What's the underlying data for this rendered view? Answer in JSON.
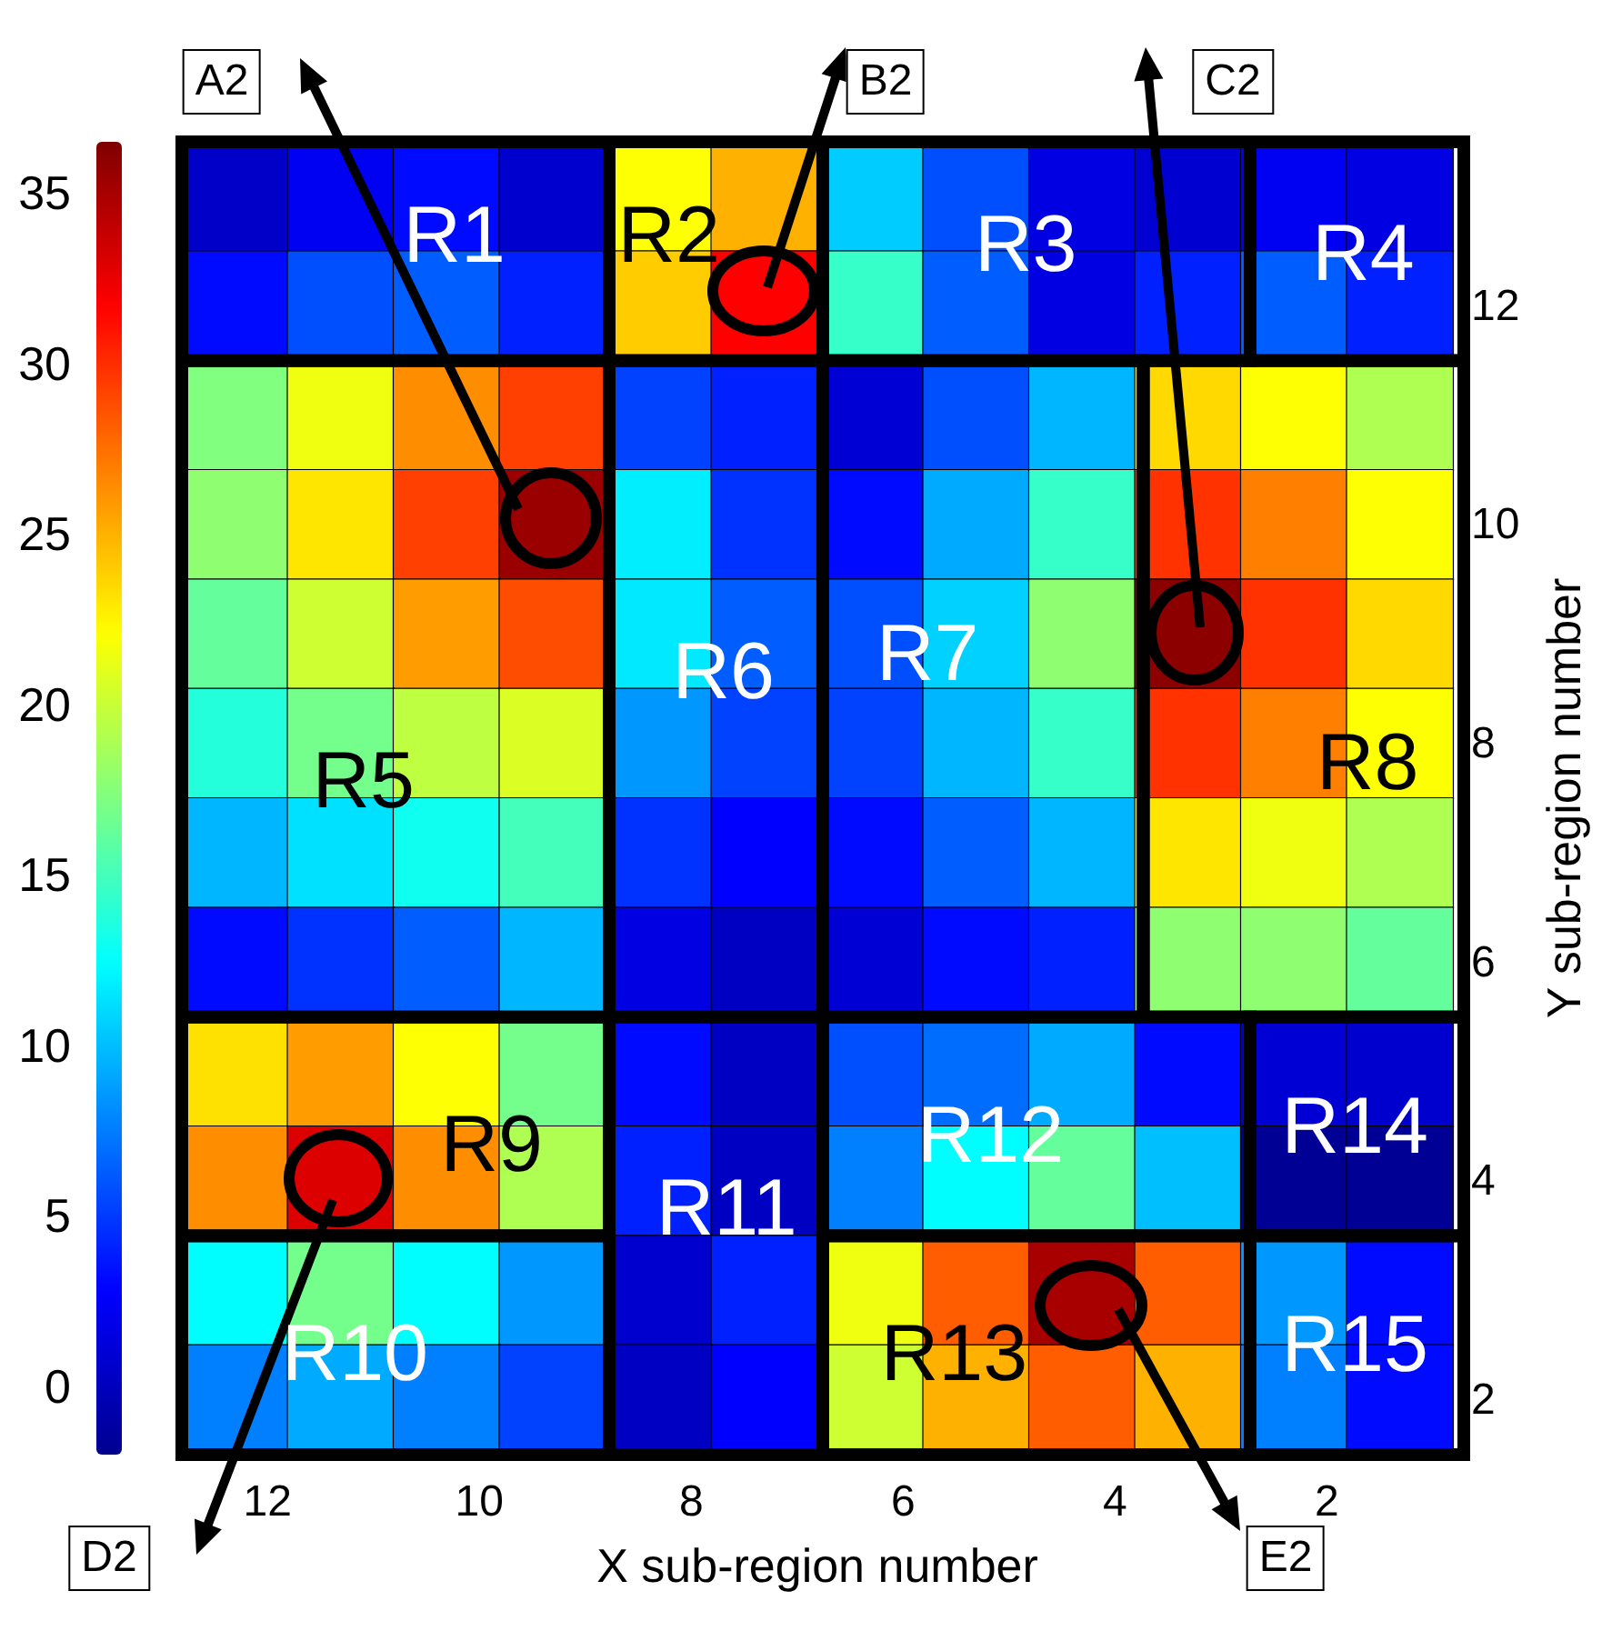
{
  "chart_data": {
    "type": "heatmap",
    "xlabel": "X sub-region number",
    "ylabel": "Y sub-region number",
    "categories": [
      "12",
      null,
      "10",
      null,
      "8",
      null,
      "6",
      null,
      "4",
      null,
      "2",
      null
    ],
    "y_categories": [
      null,
      "12",
      null,
      "10",
      null,
      "8",
      null,
      "6",
      null,
      "4",
      null,
      "2"
    ],
    "cells": [
      [
        0.5,
        2.3,
        3.2,
        0.7,
        22,
        25,
        10.5,
        5.8,
        1.6,
        0.8,
        2.3,
        1.6
      ],
      [
        3.2,
        5.8,
        6.3,
        4,
        24,
        31.7,
        14.5,
        6.3,
        1.6,
        4,
        6.3,
        4
      ],
      [
        17.3,
        21.5,
        26.4,
        29.3,
        5.3,
        4,
        1,
        5.8,
        9.7,
        23.5,
        22,
        19
      ],
      [
        17.8,
        23,
        29.3,
        35.5,
        11.8,
        4.7,
        3.2,
        9.2,
        14.5,
        29.8,
        26.9,
        22
      ],
      [
        16.2,
        20.2,
        25.8,
        28.8,
        11.6,
        6.3,
        5.8,
        10.7,
        17.8,
        36,
        29.8,
        23.5
      ],
      [
        13.8,
        16.8,
        19.6,
        20.7,
        8.5,
        5.3,
        5.3,
        9.7,
        14.5,
        29.8,
        26.9,
        22
      ],
      [
        9.7,
        11.3,
        13,
        15,
        4.7,
        2.8,
        3.2,
        6.3,
        9.7,
        23,
        21.5,
        19
      ],
      [
        3.2,
        4.7,
        6.3,
        9.7,
        1.6,
        0.2,
        1,
        3.2,
        4,
        17.8,
        17.8,
        16.2
      ],
      [
        23.2,
        25.8,
        22,
        16.8,
        3.2,
        0.2,
        5.8,
        6.9,
        9.2,
        3.2,
        1,
        0.7
      ],
      [
        26.4,
        33,
        26.4,
        19,
        4,
        0.2,
        7.6,
        12.4,
        16.2,
        10,
        -1.8,
        -1.8
      ],
      [
        12.4,
        16.8,
        12.4,
        8.5,
        0.7,
        4,
        21.5,
        28.2,
        35,
        28.2,
        8.5,
        3.2
      ],
      [
        7.6,
        9.2,
        7.6,
        5.3,
        0.2,
        2.8,
        20.2,
        25,
        28.2,
        25,
        7.6,
        3.2
      ]
    ],
    "clim": [
      -2,
      36.5
    ],
    "cticks": [
      0,
      5,
      10,
      15,
      20,
      25,
      30,
      35
    ],
    "annotations": [
      "R1",
      "R2",
      "R3",
      "R4",
      "R5",
      "R6",
      "R7",
      "R8",
      "R9",
      "R10",
      "R11",
      "R12",
      "R13",
      "R14",
      "R15",
      "A2",
      "B2",
      "C2",
      "D2",
      "E2"
    ]
  }
}
